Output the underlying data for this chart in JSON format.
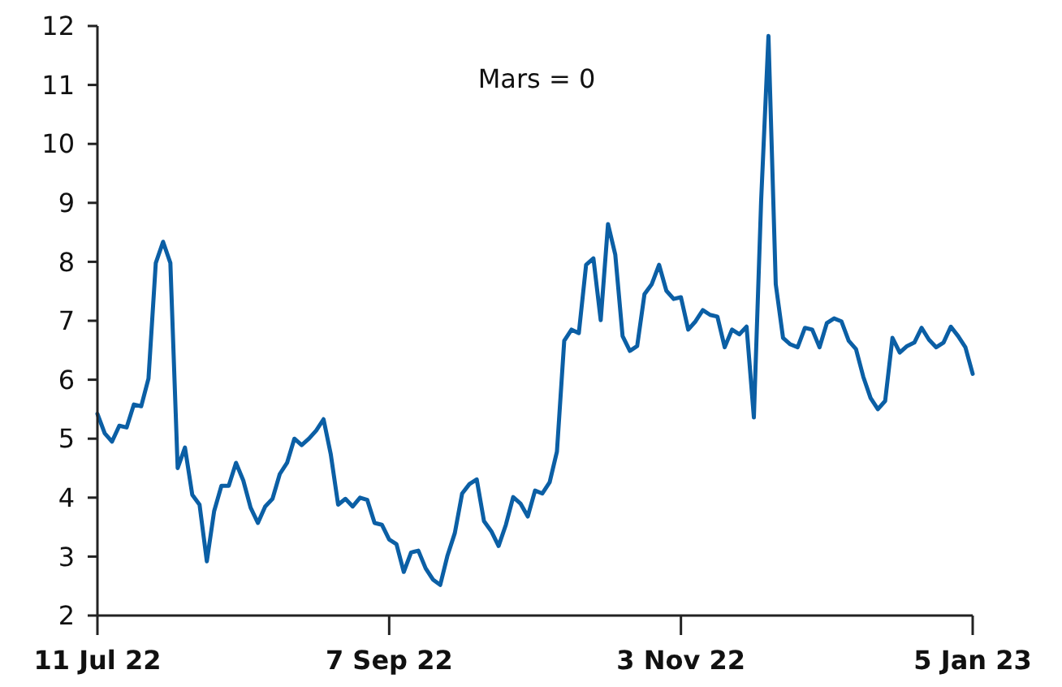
{
  "chart_data": {
    "type": "line",
    "annotations": [
      "Mars = 0"
    ],
    "categories": [
      "11 Jul 22",
      null,
      null,
      null,
      null,
      null,
      null,
      null,
      null,
      null,
      null,
      null,
      null,
      null,
      null,
      null,
      null,
      null,
      null,
      null,
      null,
      null,
      null,
      null,
      null,
      null,
      null,
      null,
      null,
      null,
      null,
      null,
      null,
      null,
      null,
      null,
      null,
      null,
      null,
      null,
      "7 Sep 22",
      null,
      null,
      null,
      null,
      null,
      null,
      null,
      null,
      null,
      null,
      null,
      null,
      null,
      null,
      null,
      null,
      null,
      null,
      null,
      null,
      null,
      null,
      null,
      null,
      null,
      null,
      null,
      null,
      null,
      null,
      null,
      null,
      null,
      null,
      null,
      null,
      null,
      null,
      null,
      "3 Nov 22",
      null,
      null,
      null,
      null,
      null,
      null,
      null,
      null,
      null,
      null,
      null,
      null,
      null,
      null,
      null,
      null,
      null,
      null,
      null,
      null,
      null,
      null,
      null,
      null,
      null,
      null,
      null,
      null,
      null,
      null,
      null,
      null,
      null,
      null,
      null,
      null,
      null,
      null,
      null,
      "5 Jan 23"
    ],
    "ylim": [
      2,
      12
    ],
    "yticks": [
      2,
      3,
      4,
      5,
      6,
      7,
      8,
      9,
      10,
      11,
      12
    ],
    "grid": false,
    "marker": "none",
    "line_style": "solid",
    "series": [
      {
        "color": "#0b5fa5",
        "values": [
          5.42,
          5.09,
          4.95,
          5.22,
          5.19,
          5.58,
          5.55,
          6.02,
          7.98,
          8.34,
          7.98,
          4.5,
          4.85,
          4.05,
          3.88,
          2.92,
          3.77,
          4.2,
          4.2,
          4.59,
          4.29,
          3.83,
          3.57,
          3.85,
          3.98,
          4.4,
          4.59,
          5.0,
          4.89,
          5.0,
          5.14,
          5.33,
          4.73,
          3.88,
          3.98,
          3.85,
          4.0,
          3.96,
          3.57,
          3.54,
          3.29,
          3.21,
          2.74,
          3.07,
          3.1,
          2.8,
          2.61,
          2.52,
          3.02,
          3.4,
          4.07,
          4.23,
          4.31,
          3.6,
          3.43,
          3.18,
          3.54,
          4.01,
          3.9,
          3.68,
          4.12,
          4.07,
          4.26,
          4.78,
          6.66,
          6.85,
          6.79,
          7.95,
          8.06,
          7.01,
          8.64,
          8.12,
          6.74,
          6.49,
          6.57,
          7.45,
          7.62,
          7.95,
          7.51,
          7.37,
          7.4,
          6.85,
          6.99,
          7.18,
          7.1,
          7.07,
          6.55,
          6.85,
          6.77,
          6.9,
          5.36,
          9.05,
          11.83,
          7.62,
          6.71,
          6.6,
          6.55,
          6.88,
          6.85,
          6.55,
          6.96,
          7.04,
          6.99,
          6.66,
          6.52,
          6.05,
          5.69,
          5.5,
          5.64,
          6.71,
          6.46,
          6.57,
          6.63,
          6.88,
          6.68,
          6.55,
          6.63,
          6.9,
          6.74,
          6.55,
          6.1
        ]
      }
    ]
  }
}
